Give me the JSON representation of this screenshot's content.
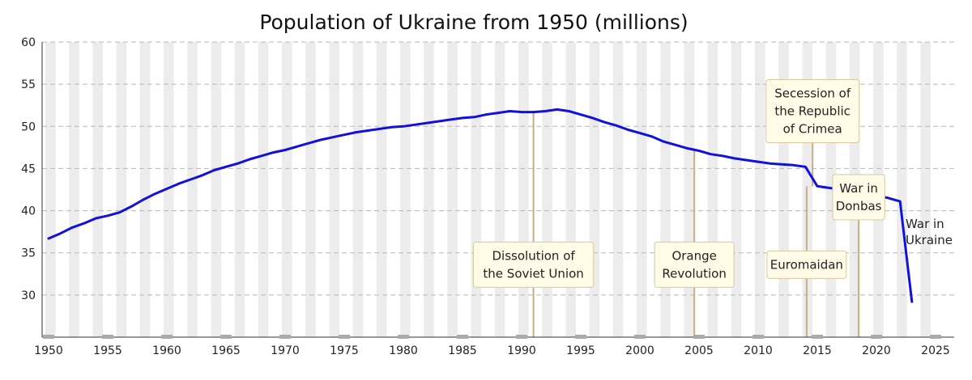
{
  "chart_data": {
    "type": "line",
    "title": "Population of Ukraine from 1950 (millions)",
    "xlabel": "",
    "ylabel": "",
    "xlim": [
      1950,
      2026
    ],
    "ylim": [
      25,
      60
    ],
    "x_ticks": [
      1950,
      1955,
      1960,
      1965,
      1970,
      1975,
      1980,
      1985,
      1990,
      1995,
      2000,
      2005,
      2010,
      2015,
      2020,
      2025
    ],
    "y_ticks": [
      30,
      35,
      40,
      45,
      50,
      55,
      60
    ],
    "grid": "horizontal dashed lines with alternating vertical year bands",
    "series_color": "#1010e0",
    "series": [
      {
        "x": [
          1950,
          1951,
          1952,
          1953,
          1954,
          1955,
          1956,
          1957,
          1958,
          1959,
          1960,
          1961,
          1962,
          1963,
          1964,
          1965,
          1966,
          1967,
          1968,
          1969,
          1970,
          1971,
          1972,
          1973,
          1974,
          1975,
          1976,
          1977,
          1978,
          1979,
          1980,
          1981,
          1982,
          1983,
          1984,
          1985,
          1986,
          1987,
          1988,
          1989,
          1990,
          1991,
          1992,
          1993,
          1994,
          1995,
          1996,
          1997,
          1998,
          1999,
          2000,
          2001,
          2002,
          2003,
          2004,
          2005,
          2006,
          2007,
          2008,
          2009,
          2010,
          2011,
          2012,
          2013,
          2014,
          2015,
          2016,
          2017,
          2018,
          2019,
          2020,
          2021,
          2022,
          2023
        ],
        "values": [
          36.7,
          37.3,
          38.0,
          38.5,
          39.1,
          39.4,
          39.8,
          40.5,
          41.3,
          42.0,
          42.6,
          43.2,
          43.7,
          44.2,
          44.8,
          45.2,
          45.6,
          46.1,
          46.5,
          46.9,
          47.2,
          47.6,
          48.0,
          48.4,
          48.7,
          49.0,
          49.3,
          49.5,
          49.7,
          49.9,
          50.0,
          50.2,
          50.4,
          50.6,
          50.8,
          51.0,
          51.1,
          51.4,
          51.6,
          51.8,
          51.7,
          51.7,
          51.8,
          52.0,
          51.8,
          51.4,
          51.0,
          50.5,
          50.1,
          49.6,
          49.2,
          48.8,
          48.2,
          47.8,
          47.4,
          47.1,
          46.7,
          46.5,
          46.2,
          46.0,
          45.8,
          45.6,
          45.5,
          45.4,
          45.2,
          42.9,
          42.7,
          42.5,
          42.3,
          42.2,
          41.8,
          41.5,
          41.1,
          29.2
        ]
      }
    ],
    "annotations": [
      {
        "year": 1991,
        "lines": [
          "Dissolution of",
          "the Soviet Union"
        ],
        "label_y": 33.6
      },
      {
        "year": 2004.6,
        "lines": [
          "Orange",
          "Revolution"
        ],
        "label_y": 33.6
      },
      {
        "year": 2014.1,
        "lines": [
          "Euromaidan"
        ],
        "label_y": 33.6
      },
      {
        "year": 2014.6,
        "lines": [
          "Secession of",
          "the Republic",
          "of Crimea"
        ],
        "label_y": 51.8
      },
      {
        "year": 2018.5,
        "lines": [
          "War in",
          "Donbas"
        ],
        "label_y": 41.6
      }
    ],
    "free_annotation": {
      "lines": [
        "War in",
        "Ukraine"
      ]
    }
  }
}
